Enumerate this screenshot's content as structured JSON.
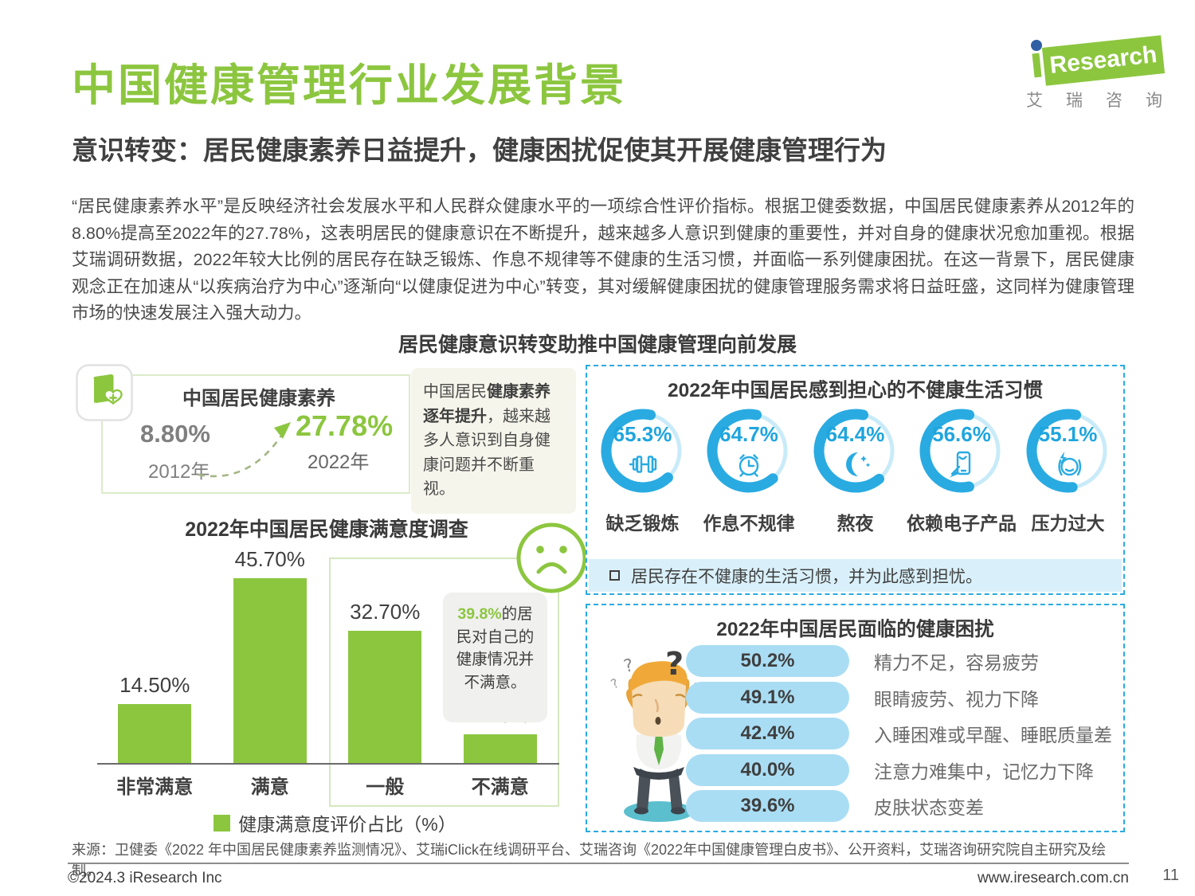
{
  "colors": {
    "accent_green": "#8CC63F",
    "accent_cyan": "#29ABE2",
    "cyan_track": "#C9EBF9",
    "pill_blue": "#A9DDF4",
    "note_blue": "#D9F0FA"
  },
  "header": {
    "title": "中国健康管理行业发展背景",
    "subtitle": "意识转变：居民健康素养日益提升，健康困扰促使其开展健康管理行为",
    "logo": {
      "i": "i",
      "research": "Research",
      "subtext": "艾瑞咨询"
    }
  },
  "intro_paragraph": "“居民健康素养水平”是反映经济社会发展水平和人民群众健康水平的一项综合性评价指标。根据卫健委数据，中国居民健康素养从2012年的8.80%提高至2022年的27.78%，这表明居民的健康意识在不断提升，越来越多人意识到健康的重要性，并对自身的健康状况愈加重视。根据艾瑞调研数据，2022年较大比例的居民存在缺乏锻炼、作息不规律等不健康的生活习惯，并面临一系列健康困扰。在这一背景下，居民健康观念正在加速从“以疾病治疗为中心”逐渐向“以健康促进为中心”转变，其对缓解健康困扰的健康管理服务需求将日益旺盛，这同样为健康管理市场的快速发展注入强大动力。",
  "section_title": "居民健康意识转变助推中国健康管理向前发展",
  "literacy_card": {
    "title": "中国居民健康素养",
    "start": {
      "value": "8.80%",
      "year": "2012年"
    },
    "end": {
      "value": "27.78%",
      "year": "2022年"
    },
    "note": {
      "prefix": "中国居民",
      "bold": "健康素养逐年提升",
      "suffix": "，越来越多人意识到自身健康问题并不断重视。"
    }
  },
  "chart_data": [
    {
      "id": "satisfaction",
      "type": "bar",
      "title": "2022年中国居民健康满意度调查",
      "categories": [
        "非常满意",
        "满意",
        "一般",
        "不满意"
      ],
      "values": [
        14.5,
        45.7,
        32.7,
        7.1
      ],
      "value_labels": [
        "14.50%",
        "45.70%",
        "32.70%",
        "7.10%"
      ],
      "ylim": [
        0,
        50
      ],
      "legend": "健康满意度评价占比（%）",
      "bar_color": "#8CC63F",
      "annotation": {
        "highlight": "39.8%",
        "text": "的居民对自己的健康情况并不满意。",
        "highlighted_categories": [
          "一般",
          "不满意"
        ]
      }
    },
    {
      "id": "habits",
      "type": "pie",
      "title": "2022年中国居民感到担心的不健康生活习惯",
      "ring_color": "#29ABE2",
      "track_color": "#C9EBF9",
      "rings": [
        {
          "label": "缺乏锻炼",
          "value": 65.3,
          "value_label": "65.3%",
          "icon": "dumbbell-icon"
        },
        {
          "label": "作息不规律",
          "value": 64.7,
          "value_label": "64.7%",
          "icon": "alarm-clock-icon"
        },
        {
          "label": "熬夜",
          "value": 64.4,
          "value_label": "64.4%",
          "icon": "moon-icon"
        },
        {
          "label": "依赖电子产品",
          "value": 56.6,
          "value_label": "56.6%",
          "icon": "phone-touch-icon"
        },
        {
          "label": "压力过大",
          "value": 55.1,
          "value_label": "55.1%",
          "icon": "stress-head-icon"
        }
      ],
      "note": "居民存在不健康的生活习惯，并为此感到担忧。"
    },
    {
      "id": "troubles",
      "type": "bar",
      "orientation": "horizontal",
      "title": "2022年中国居民面临的健康困扰",
      "categories": [
        "精力不足，容易疲劳",
        "眼睛疲劳、视力下降",
        "入睡困难或早醒、睡眠质量差",
        "注意力难集中，记忆力下降",
        "皮肤状态变差"
      ],
      "values": [
        50.2,
        49.1,
        42.4,
        40.0,
        39.6
      ],
      "value_labels": [
        "50.2%",
        "49.1%",
        "42.4%",
        "40.0%",
        "39.6%"
      ],
      "bar_color": "#A9DDF4"
    }
  ],
  "footer": {
    "source": "来源：卫健委《2022 年中国居民健康素养监测情况》、艾瑞iClick在线调研平台、艾瑞咨询《2022年中国健康管理白皮书》、公开资料，艾瑞咨询研究院自主研究及绘制。",
    "copyright": "©2024.3 iResearch Inc",
    "website": "www.iresearch.com.cn",
    "page_number": "11"
  }
}
